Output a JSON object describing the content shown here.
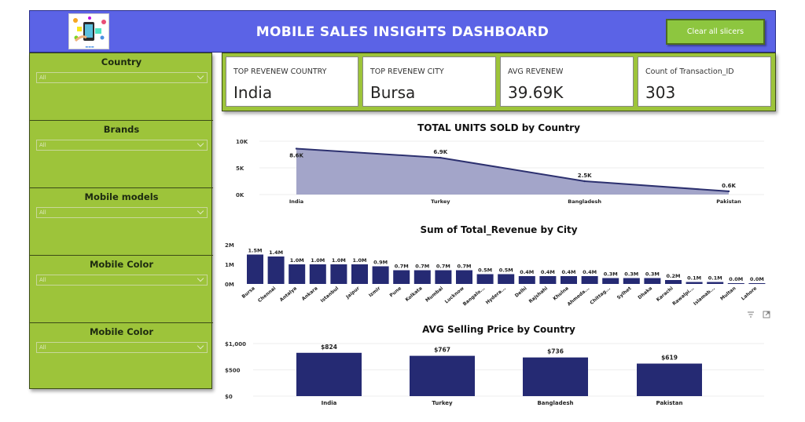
{
  "header": {
    "title": "MOBILE SALES INSIGHTS DASHBOARD",
    "clear_button": "Clear all slicers",
    "logo_icon": "mobile-shopping-logo-icon"
  },
  "slicers": [
    {
      "title": "Country",
      "value": "All"
    },
    {
      "title": "Brands",
      "value": "All"
    },
    {
      "title": "Mobile models",
      "value": "All"
    },
    {
      "title": "Mobile Color",
      "value": "All"
    },
    {
      "title": "Mobile Color",
      "value": "All"
    }
  ],
  "kpis": [
    {
      "label": "TOP REVENEW COUNTRY",
      "value": "India"
    },
    {
      "label": "TOP REVENEW CITY",
      "value": "Bursa"
    },
    {
      "label": "AVG REVENEW",
      "value": "39.69K"
    },
    {
      "label": "Count of Transaction_ID",
      "value": "303"
    }
  ],
  "colors": {
    "header_bg": "#5b63e6",
    "panel_green": "#9dc43a",
    "bar_navy": "#252a73",
    "area_fill": "#a3a5c9",
    "area_line": "#2c306f"
  },
  "chart_data": [
    {
      "type": "area",
      "title": "TOTAL UNITS SOLD by Country",
      "categories": [
        "India",
        "Turkey",
        "Bangladesh",
        "Pakistan"
      ],
      "values": [
        8600,
        6900,
        2500,
        600
      ],
      "data_labels": [
        "8.6K",
        "6.9K",
        "2.5K",
        "0.6K"
      ],
      "y_ticks": [
        "0K",
        "5K",
        "10K"
      ],
      "y_tick_values": [
        0,
        5000,
        10000
      ],
      "ylim": [
        0,
        10000
      ]
    },
    {
      "type": "bar",
      "title": "Sum of Total_Revenue by City",
      "categories": [
        "Bursa",
        "Chennai",
        "Antalya",
        "Ankara",
        "Istanbul",
        "Jaipur",
        "Izmir",
        "Pune",
        "Kolkata",
        "Mumbai",
        "Lucknow",
        "Bangalo...",
        "Hydera...",
        "Delhi",
        "Rajshahi",
        "Khulna",
        "Ahmeda...",
        "Chittag...",
        "Sylhet",
        "Dhaka",
        "Karachi",
        "Rawalpi...",
        "Islamab...",
        "Multan",
        "Lahore"
      ],
      "values": [
        1.5,
        1.4,
        1.0,
        1.0,
        1.0,
        1.0,
        0.9,
        0.7,
        0.7,
        0.7,
        0.7,
        0.5,
        0.5,
        0.4,
        0.4,
        0.4,
        0.4,
        0.3,
        0.3,
        0.3,
        0.2,
        0.1,
        0.1,
        0.04,
        0.04
      ],
      "data_labels": [
        "1.5M",
        "1.4M",
        "1.0M",
        "1.0M",
        "1.0M",
        "1.0M",
        "0.9M",
        "0.7M",
        "0.7M",
        "0.7M",
        "0.7M",
        "0.5M",
        "0.5M",
        "0.4M",
        "0.4M",
        "0.4M",
        "0.4M",
        "0.3M",
        "0.3M",
        "0.3M",
        "0.2M",
        "0.1M",
        "0.1M",
        "0.0M",
        "0.0M"
      ],
      "y_ticks": [
        "0M",
        "1M",
        "2M"
      ],
      "y_tick_values": [
        0,
        1,
        2
      ],
      "ylim": [
        0,
        2
      ]
    },
    {
      "type": "bar",
      "title": "AVG Selling Price by Country",
      "categories": [
        "India",
        "Turkey",
        "Bangladesh",
        "Pakistan"
      ],
      "values": [
        824,
        767,
        736,
        619
      ],
      "data_labels": [
        "$824",
        "$767",
        "$736",
        "$619"
      ],
      "y_ticks": [
        "$0",
        "$500",
        "$1,000"
      ],
      "y_tick_values": [
        0,
        500,
        1000
      ],
      "ylim": [
        0,
        1000
      ]
    }
  ],
  "toolbar_icons": [
    "filter-icon",
    "focus-mode-icon"
  ]
}
